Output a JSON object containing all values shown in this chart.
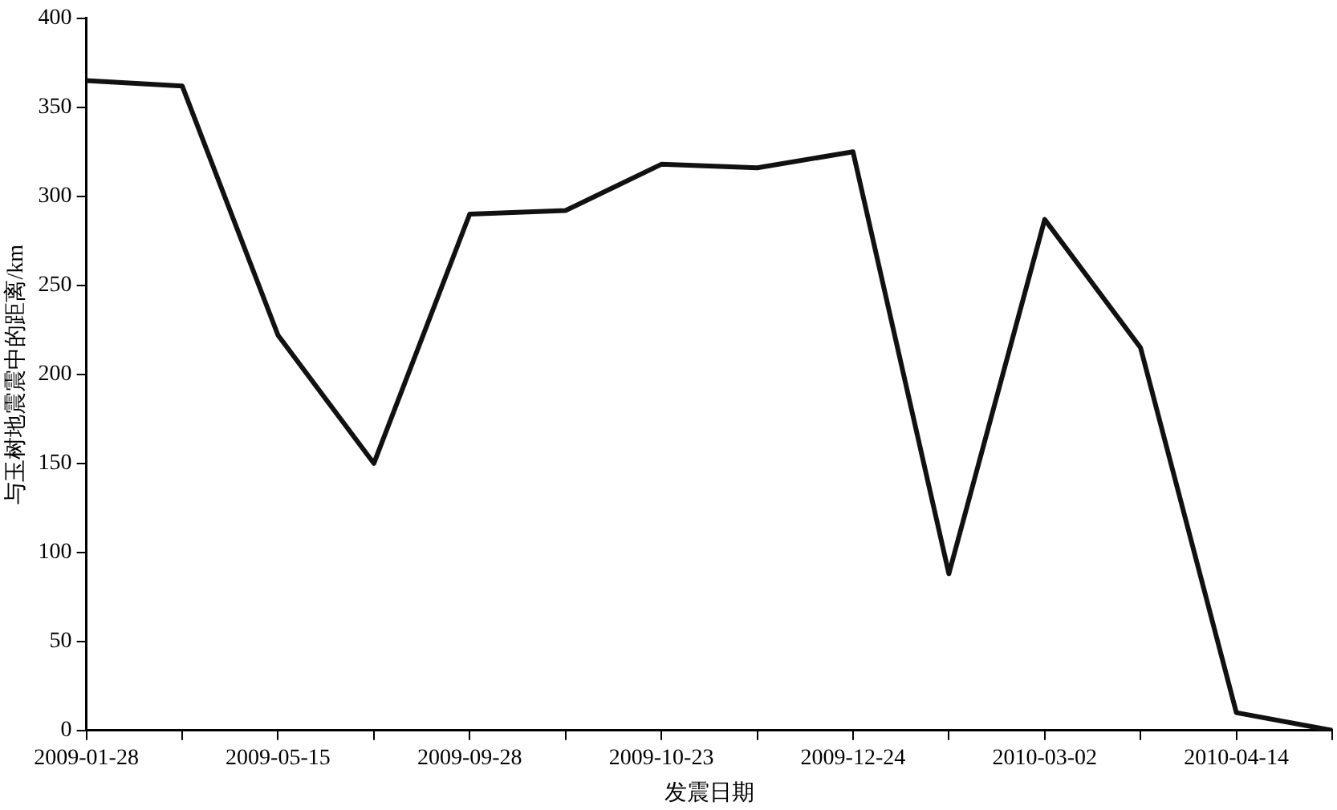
{
  "chart_data": {
    "type": "line",
    "xlabel": "发震日期",
    "ylabel": "与玉树地震震中的距离/km",
    "categories": [
      "2009-01-28",
      null,
      "2009-05-15",
      null,
      "2009-09-28",
      null,
      "2009-10-23",
      null,
      "2009-12-24",
      null,
      "2010-03-02",
      null,
      "2010-04-14",
      null
    ],
    "series": [
      {
        "color": "#111111",
        "values": [
          365,
          362,
          222,
          150,
          290,
          292,
          318,
          316,
          325,
          88,
          287,
          215,
          10,
          0
        ]
      }
    ],
    "ylim": [
      0,
      400
    ],
    "yticks": [
      0,
      50,
      100,
      150,
      200,
      250,
      300,
      350,
      400
    ],
    "grid": false,
    "legend": false,
    "marker": "none",
    "line_style": "solid"
  }
}
